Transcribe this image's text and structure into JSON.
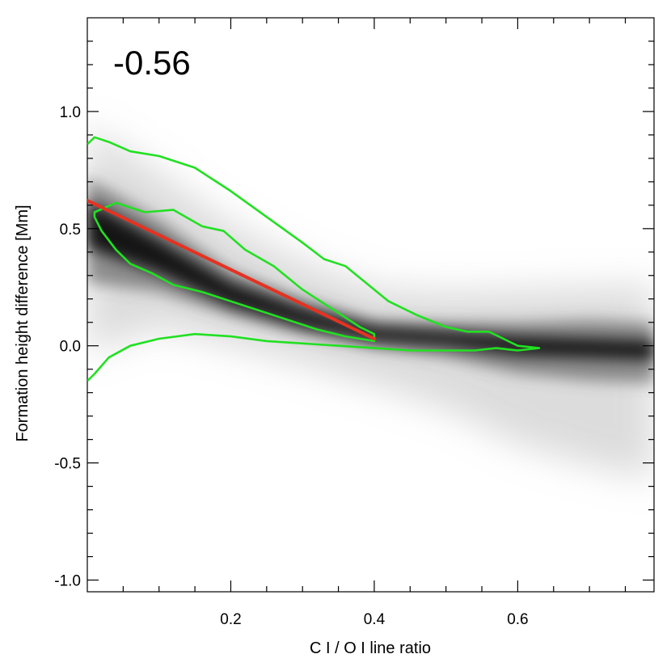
{
  "chart_data": {
    "type": "heatmap",
    "xlabel": "C I / O I line ratio",
    "ylabel": "Formation height difference [Mm]",
    "xlim": [
      0.0,
      0.79
    ],
    "ylim": [
      -1.05,
      1.4
    ],
    "x_ticks": [
      0.2,
      0.4,
      0.6
    ],
    "x_tick_labels": [
      "0.2",
      "0.4",
      "0.6"
    ],
    "y_ticks": [
      1.0,
      0.5,
      0.0,
      -0.5,
      -1.0
    ],
    "y_tick_labels": [
      "1.0",
      "0.5",
      "0.0",
      "-0.5",
      "-1.0"
    ],
    "x_minor_step": 0.05,
    "y_minor_step": 0.1,
    "grid": false,
    "annotation": "-0.56",
    "colors": {
      "density": "#000000",
      "contour": "#22e022",
      "fit_line": "#e53222"
    },
    "fit_line": {
      "x": [
        0.0,
        0.4
      ],
      "y": [
        0.62,
        0.03
      ]
    },
    "density_ridge": {
      "x": [
        0.0,
        0.1,
        0.2,
        0.3,
        0.4,
        0.5,
        0.6,
        0.7,
        0.79
      ],
      "y": [
        0.52,
        0.38,
        0.22,
        0.12,
        0.05,
        0.03,
        0.0,
        -0.01,
        -0.02
      ]
    },
    "contours": [
      {
        "level": "outer",
        "x": [
          0.0,
          0.01,
          0.03,
          0.06,
          0.1,
          0.15,
          0.2,
          0.25,
          0.3,
          0.33,
          0.36,
          0.38,
          0.4,
          0.42,
          0.44,
          0.46,
          0.5,
          0.53,
          0.56,
          0.58,
          0.6,
          0.63,
          0.6,
          0.57,
          0.54,
          0.5,
          0.45,
          0.4,
          0.35,
          0.3,
          0.25,
          0.2,
          0.15,
          0.1,
          0.06,
          0.03,
          0.01,
          0.0
        ],
        "y": [
          0.86,
          0.89,
          0.87,
          0.83,
          0.81,
          0.76,
          0.66,
          0.55,
          0.44,
          0.37,
          0.34,
          0.29,
          0.24,
          0.19,
          0.16,
          0.13,
          0.08,
          0.06,
          0.06,
          0.03,
          0.0,
          -0.01,
          -0.02,
          -0.01,
          -0.02,
          -0.02,
          -0.02,
          -0.01,
          0.0,
          0.01,
          0.02,
          0.04,
          0.05,
          0.03,
          0.0,
          -0.05,
          -0.12,
          -0.15
        ]
      },
      {
        "level": "inner",
        "x": [
          0.01,
          0.04,
          0.08,
          0.12,
          0.16,
          0.19,
          0.22,
          0.26,
          0.3,
          0.34,
          0.38,
          0.4,
          0.4,
          0.36,
          0.32,
          0.28,
          0.24,
          0.2,
          0.16,
          0.12,
          0.09,
          0.06,
          0.04,
          0.03,
          0.02,
          0.01
        ],
        "y": [
          0.57,
          0.61,
          0.57,
          0.58,
          0.51,
          0.49,
          0.41,
          0.34,
          0.24,
          0.16,
          0.08,
          0.05,
          0.02,
          0.04,
          0.07,
          0.11,
          0.15,
          0.19,
          0.23,
          0.26,
          0.31,
          0.35,
          0.41,
          0.45,
          0.49,
          0.55
        ]
      }
    ]
  }
}
